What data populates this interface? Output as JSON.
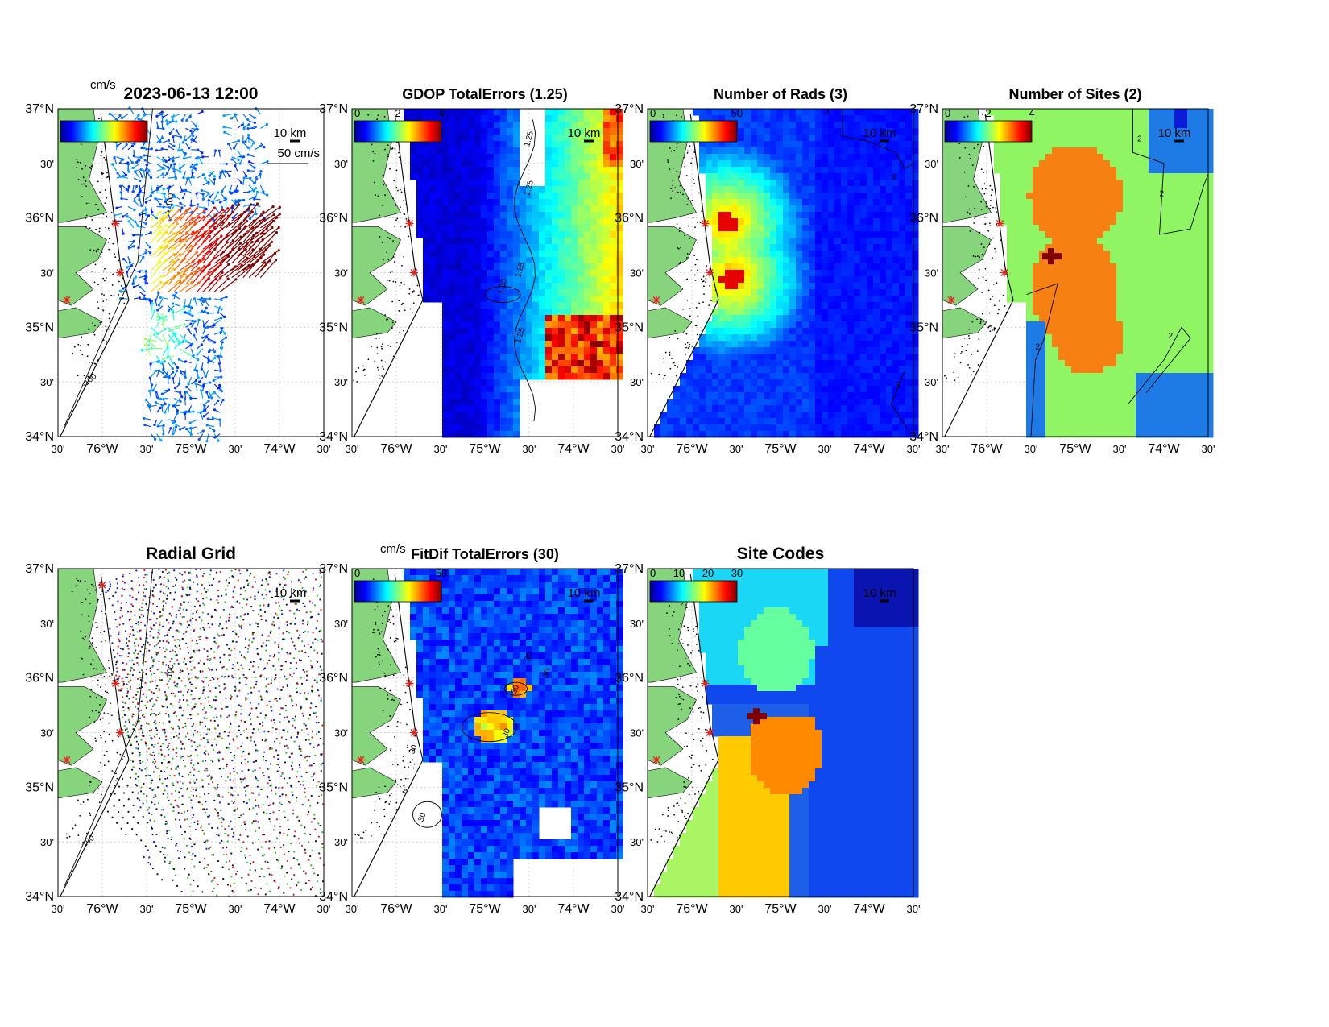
{
  "figure": {
    "timestamp": "2023-06-13 12:00",
    "colors": {
      "land": "#86d57d",
      "ocean_white": "#ffffff",
      "site_marker": "#e0201a",
      "grid_dots": "#c9c9c9",
      "radial_site_blue": "#0c1bd8",
      "radial_site_red": "#e01a1a",
      "radial_site_green": "#27c21a",
      "radial_site_black": "#111111"
    },
    "axes": {
      "y_labels": [
        "37°N",
        "30'",
        "36°N",
        "30'",
        "35°N",
        "30'",
        "34°N"
      ],
      "x_labels": [
        "30'",
        "76°W",
        "30'",
        "75°W",
        "30'",
        "74°W",
        "30'"
      ]
    },
    "scale_label": "10 km",
    "panels": [
      {
        "id": "currents",
        "title": "2023-06-13 12:00",
        "colorbar_unit": "cm/s",
        "colorbar_ticks": [],
        "vector_scale_label": "50 cm/s",
        "depth_labels": [
          "100",
          "-100"
        ]
      },
      {
        "id": "gdop",
        "title": "GDOP TotalErrors (1.25)",
        "colorbar_ticks": [
          "0",
          "2",
          "4"
        ],
        "contour_labels": [
          "1.25",
          "1.25",
          "1.25",
          "1.25",
          "1.25"
        ]
      },
      {
        "id": "rads",
        "title": "Number of Rads (3)",
        "colorbar_ticks": [
          "0",
          "50"
        ],
        "contour_labels": [
          "3",
          "3",
          "3"
        ]
      },
      {
        "id": "sites",
        "title": "Number of Sites (2)",
        "colorbar_ticks": [
          "0",
          "2",
          "4"
        ],
        "contour_labels": [
          "2",
          "2",
          "2",
          "2"
        ]
      },
      {
        "id": "radial",
        "title": "Radial Grid",
        "depth_labels": [
          "100",
          "100"
        ]
      },
      {
        "id": "fitdif",
        "title": "FitDif TotalErrors (30)",
        "colorbar_unit": "cm/s",
        "colorbar_ticks": [
          "0",
          "50"
        ],
        "contour_labels": [
          "30",
          "30",
          "30",
          "30",
          "30",
          "30"
        ]
      },
      {
        "id": "codes",
        "title": "Site Codes",
        "colorbar_ticks": [
          "0",
          "10",
          "20",
          "30"
        ]
      }
    ]
  }
}
